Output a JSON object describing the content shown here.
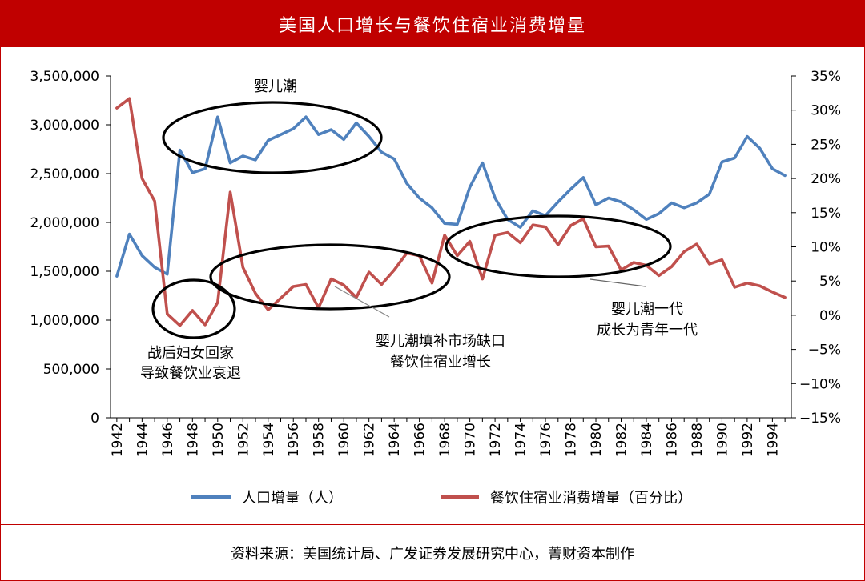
{
  "title": "美国人口增长与餐饮住宿业消费增量",
  "source": "资料来源：美国统计局、广发证券发展研究中心，菁财资本制作",
  "colors": {
    "header": "#c00000",
    "population": "#4f81bd",
    "consumption": "#c0504d"
  },
  "chart_data": {
    "type": "line",
    "x": [
      1942,
      1943,
      1944,
      1945,
      1946,
      1947,
      1948,
      1949,
      1950,
      1951,
      1952,
      1953,
      1954,
      1955,
      1956,
      1957,
      1958,
      1959,
      1960,
      1961,
      1962,
      1963,
      1964,
      1965,
      1966,
      1967,
      1968,
      1969,
      1970,
      1971,
      1972,
      1973,
      1974,
      1975,
      1976,
      1977,
      1978,
      1979,
      1980,
      1981,
      1982,
      1983,
      1984,
      1985,
      1986,
      1987,
      1988,
      1989,
      1990,
      1991,
      1992,
      1993,
      1994,
      1995
    ],
    "x_tick_labels": [
      "1942",
      "1944",
      "1946",
      "1948",
      "1950",
      "1952",
      "1954",
      "1956",
      "1958",
      "1960",
      "1962",
      "1964",
      "1966",
      "1968",
      "1970",
      "1972",
      "1974",
      "1976",
      "1978",
      "1980",
      "1982",
      "1984",
      "1986",
      "1988",
      "1990",
      "1992",
      "1994"
    ],
    "y_left": {
      "range": [
        0,
        3500000
      ],
      "ticks": [
        "0",
        "500,000",
        "1,000,000",
        "1,500,000",
        "2,000,000",
        "2,500,000",
        "3,000,000",
        "3,500,000"
      ]
    },
    "y_right": {
      "range": [
        -15,
        35
      ],
      "ticks": [
        "−15%",
        "−10%",
        "−5%",
        "0%",
        "5%",
        "10%",
        "15%",
        "20%",
        "25%",
        "30%",
        "35%"
      ]
    },
    "series": [
      {
        "name": "人口增量（人）",
        "axis": "left",
        "values": [
          1450000,
          1880000,
          1660000,
          1540000,
          1470000,
          2740000,
          2510000,
          2550000,
          3080000,
          2610000,
          2680000,
          2640000,
          2840000,
          2900000,
          2960000,
          3080000,
          2900000,
          2950000,
          2850000,
          3020000,
          2880000,
          2720000,
          2650000,
          2400000,
          2250000,
          2150000,
          1990000,
          1980000,
          2360000,
          2610000,
          2250000,
          2030000,
          1950000,
          2120000,
          2070000,
          2210000,
          2340000,
          2460000,
          2180000,
          2250000,
          2210000,
          2130000,
          2030000,
          2090000,
          2200000,
          2150000,
          2200000,
          2290000,
          2620000,
          2660000,
          2880000,
          2760000,
          2550000,
          2480000
        ]
      },
      {
        "name": "餐饮住宿业消费增量（百分比）",
        "axis": "right",
        "values": [
          30.3,
          31.7,
          20.0,
          16.7,
          0.2,
          -1.5,
          0.7,
          -1.4,
          1.9,
          18.0,
          7.0,
          3.2,
          0.8,
          2.5,
          4.2,
          4.5,
          1.1,
          5.3,
          4.4,
          2.6,
          6.3,
          4.5,
          6.6,
          9.1,
          8.7,
          4.7,
          11.7,
          8.7,
          10.8,
          5.3,
          11.7,
          12.1,
          10.6,
          13.2,
          12.9,
          10.3,
          13.1,
          14.1,
          10.0,
          10.1,
          6.6,
          7.7,
          7.3,
          5.8,
          7.1,
          9.3,
          10.4,
          7.5,
          8.1,
          4.1,
          4.7,
          4.3,
          3.4,
          2.6
        ]
      }
    ],
    "annotations": [
      "婴儿潮",
      "战后妇女回家",
      "导致餐饮业衰退",
      "婴儿潮填补市场缺口",
      "餐饮住宿业增长",
      "婴儿潮一代",
      "成长为青年一代"
    ],
    "legend_position": "bottom",
    "grid": false
  }
}
